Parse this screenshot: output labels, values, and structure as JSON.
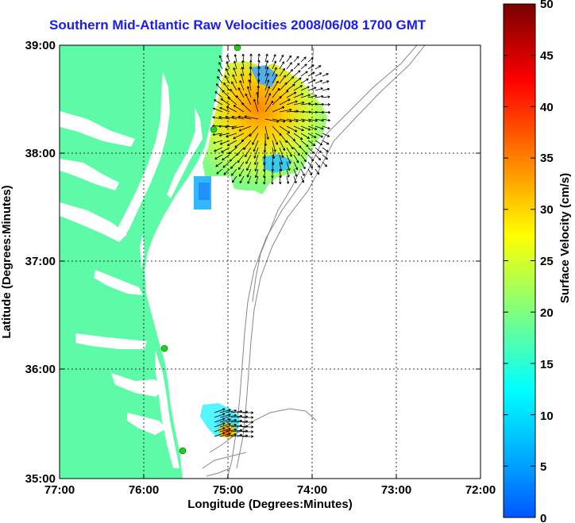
{
  "title": "Southern Mid-Atlantic Raw Velocities 2008/06/08 1700 GMT",
  "xaxis": {
    "label": "Longitude (Degrees:Minutes)",
    "ticks": [
      "77:00",
      "76:00",
      "75:00",
      "74:00",
      "73:00",
      "72:00"
    ]
  },
  "yaxis": {
    "label": "Latitude (Degrees:Minutes)",
    "ticks": [
      "39:00",
      "38:00",
      "37:00",
      "36:00",
      "35:00"
    ]
  },
  "colorbar": {
    "label": "Surface Velocity (cm/s)",
    "ticks": [
      "50",
      "45",
      "40",
      "35",
      "30",
      "25",
      "20",
      "15",
      "10",
      "5",
      "0"
    ],
    "range": [
      0,
      50
    ],
    "colors": [
      "#0055ff",
      "#00a0ff",
      "#00ffff",
      "#55ffaa",
      "#aaff55",
      "#ffff00",
      "#ffaa00",
      "#ff5500",
      "#ff0000",
      "#aa0000",
      "#7a0000"
    ]
  },
  "colors": {
    "land": "#5dfba8",
    "title": "#1a1aff",
    "station": "#22cc22"
  },
  "map_extent": {
    "lon": [
      -77,
      -72
    ],
    "lat": [
      35,
      39
    ]
  }
}
